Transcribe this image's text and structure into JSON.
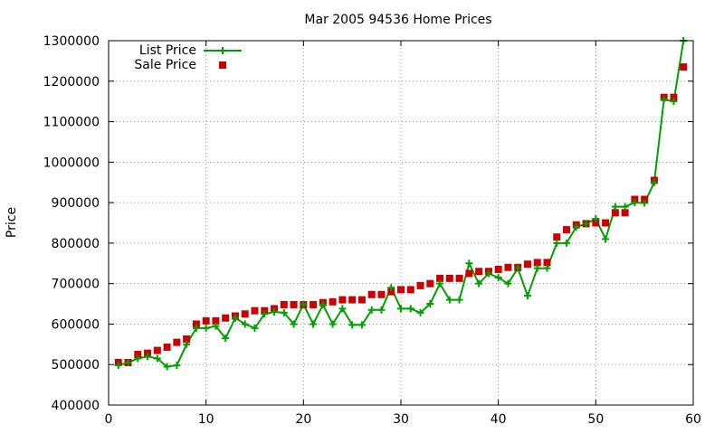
{
  "chart_data": {
    "type": "line",
    "title": "Mar 2005 94536 Home Prices",
    "xlabel": "",
    "ylabel": "Price",
    "xlim": [
      0,
      60
    ],
    "ylim": [
      400000,
      1300000
    ],
    "xticks": [
      0,
      10,
      20,
      30,
      40,
      50,
      60
    ],
    "yticks": [
      400000,
      500000,
      600000,
      700000,
      800000,
      900000,
      1000000,
      1100000,
      1200000,
      1300000
    ],
    "grid": true,
    "legend_position": "top-left",
    "x": [
      1,
      2,
      3,
      4,
      5,
      6,
      7,
      8,
      9,
      10,
      11,
      12,
      13,
      14,
      15,
      16,
      17,
      18,
      19,
      20,
      21,
      22,
      23,
      24,
      25,
      26,
      27,
      28,
      29,
      30,
      31,
      32,
      33,
      34,
      35,
      36,
      37,
      38,
      39,
      40,
      41,
      42,
      43,
      44,
      45,
      46,
      47,
      48,
      49,
      50,
      51,
      52,
      53,
      54,
      55,
      56,
      57,
      58,
      59
    ],
    "series": [
      {
        "name": "List Price",
        "style": "line-plus",
        "color": "#00a000",
        "values": [
          498000,
          505000,
          515000,
          520000,
          515000,
          495000,
          498000,
          550000,
          590000,
          590000,
          595000,
          565000,
          615000,
          600000,
          590000,
          625000,
          630000,
          628000,
          600000,
          649000,
          600000,
          648000,
          600000,
          638000,
          598000,
          598000,
          635000,
          635000,
          690000,
          638000,
          638000,
          628000,
          650000,
          700000,
          660000,
          660000,
          750000,
          700000,
          725000,
          715000,
          700000,
          738000,
          670000,
          738000,
          738000,
          800000,
          800000,
          840000,
          848000,
          860000,
          810000,
          890000,
          890000,
          900000,
          899000,
          950000,
          1155000,
          1150000,
          1300000
        ]
      },
      {
        "name": "Sale Price",
        "style": "square",
        "color": "#cc0000",
        "values": [
          505000,
          505000,
          525000,
          528000,
          535000,
          543000,
          555000,
          563000,
          600000,
          608000,
          608000,
          615000,
          620000,
          625000,
          633000,
          633000,
          638000,
          648000,
          648000,
          648000,
          648000,
          653000,
          655000,
          660000,
          660000,
          660000,
          673000,
          673000,
          680000,
          685000,
          685000,
          695000,
          700000,
          713000,
          713000,
          713000,
          725000,
          730000,
          730000,
          735000,
          740000,
          740000,
          748000,
          752000,
          752000,
          815000,
          833000,
          845000,
          848000,
          850000,
          850000,
          875000,
          875000,
          908000,
          908000,
          955000,
          1160000,
          1160000,
          1235000
        ]
      }
    ]
  }
}
